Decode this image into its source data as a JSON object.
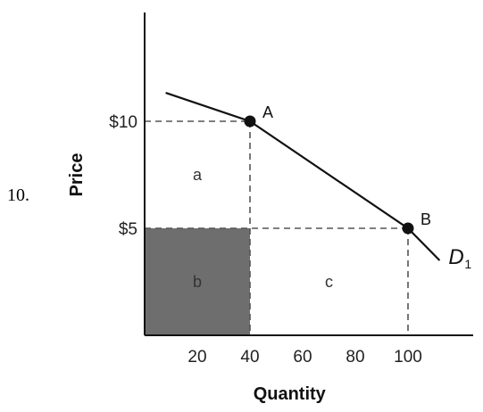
{
  "problem_number": "10.",
  "chart_data": {
    "type": "line",
    "xlabel": "Quantity",
    "ylabel": "Price",
    "xlim": [
      0,
      120
    ],
    "ylim": [
      0,
      20
    ],
    "x_ticks": [
      {
        "value": 20,
        "label": "20"
      },
      {
        "value": 40,
        "label": "40"
      },
      {
        "value": 60,
        "label": "60"
      },
      {
        "value": 80,
        "label": "80"
      },
      {
        "value": 100,
        "label": "100"
      }
    ],
    "y_ticks": [
      {
        "value": 5,
        "label": "$5"
      },
      {
        "value": 10,
        "label": "$10"
      }
    ],
    "series": [
      {
        "name": "D",
        "subscript": "1",
        "x": [
          8,
          40,
          100,
          112
        ],
        "y": [
          11.33,
          10,
          5,
          3.5
        ]
      }
    ],
    "points": [
      {
        "label": "A",
        "x": 40,
        "y": 10
      },
      {
        "label": "B",
        "x": 100,
        "y": 5
      }
    ],
    "regions": [
      {
        "label": "a",
        "x": [
          0,
          40
        ],
        "y": [
          5,
          10
        ],
        "shaded": false
      },
      {
        "label": "b",
        "x": [
          0,
          40
        ],
        "y": [
          0,
          5
        ],
        "shaded": true
      },
      {
        "label": "c",
        "x": [
          40,
          100
        ],
        "y": [
          0,
          5
        ],
        "shaded": false
      }
    ],
    "colors": {
      "shaded_region": "#6e6e6e",
      "line": "#111111",
      "dashed": "#555555"
    }
  }
}
